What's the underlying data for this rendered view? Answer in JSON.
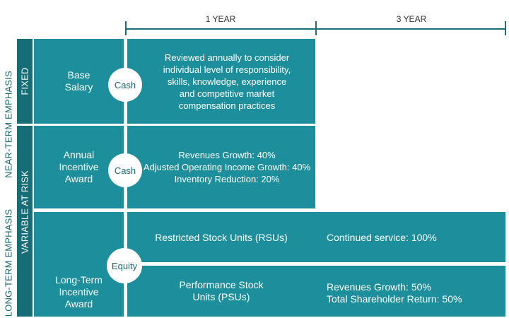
{
  "header": {
    "col1": "1 YEAR",
    "col2": "3 YEAR"
  },
  "side": {
    "near_term": "NEAR-TERM EMPHASIS",
    "long_term": "LONG-TERM EMPHASIS",
    "fixed": "FIXED",
    "variable": "VARIABLE AT RISK"
  },
  "rows": {
    "base": {
      "label": [
        "Base",
        "Salary"
      ],
      "vehicle": "Cash",
      "description": [
        "Reviewed annually to consider",
        "individual level of responsibility,",
        "skills, knowledge, experience",
        "and competitive market",
        "compensation practices"
      ]
    },
    "annual": {
      "label": [
        "Annual",
        "Incentive",
        "Award"
      ],
      "vehicle": "Cash",
      "metrics": [
        "Revenues Growth: 40%",
        "Adjusted Operating Income Growth: 40%",
        "Inventory Reduction: 20%"
      ]
    },
    "longterm": {
      "label": [
        "Long-Term",
        "Incentive",
        "Award"
      ],
      "vehicle": "Equity",
      "rsu": {
        "name": "Restricted Stock Units (RSUs)",
        "metric": "Continued service: 100%"
      },
      "psu": {
        "name": [
          "Performance Stock",
          "Units (PSUs)"
        ],
        "metrics": [
          "Revenues Growth: 50%",
          "Total Shareholder Return: 50%"
        ]
      }
    }
  },
  "colors": {
    "teal": "#1d8f9c",
    "teal_dark": "#176d76",
    "timeline": "#1b6e78"
  }
}
